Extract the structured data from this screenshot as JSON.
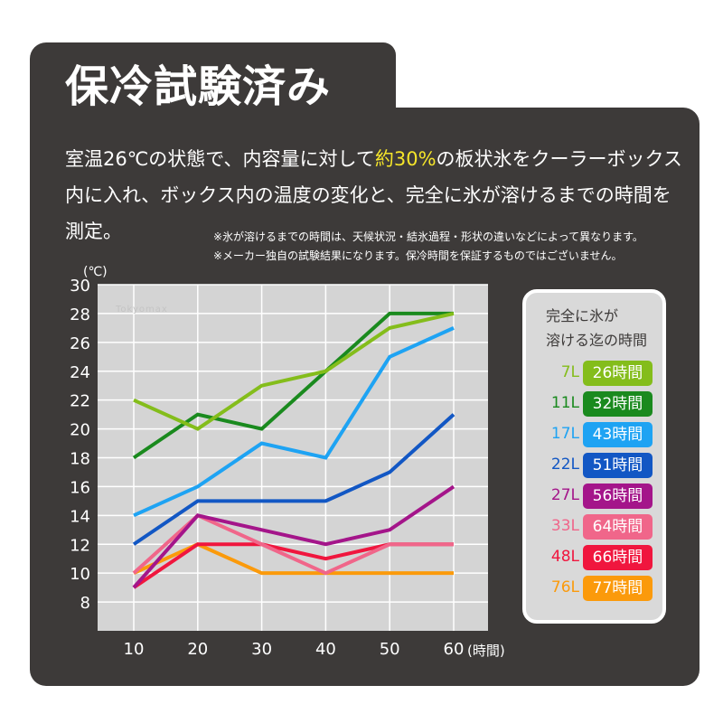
{
  "title": "保冷試験済み",
  "description": {
    "part1": "室温26℃の状態で、内容量に対して",
    "highlight": "約30%",
    "part2": "の板状氷をクーラーボックス内に入れ、ボックス内の温度の変化と、完全に氷が溶けるまでの時間を測定。"
  },
  "notes": [
    "※氷が溶けるまでの時間は、天候状況・結氷過程・形状の違いなどによって異なります。",
    "※メーカー独自の試験結果になります。保冷時間を保証するものではございません。"
  ],
  "watermark": "Tokyomax",
  "legend": {
    "title_line1": "完全に氷が",
    "title_line2": "溶ける迄の時間",
    "items": [
      {
        "volume": "7L",
        "time": "26時間",
        "color": "#84bd1b"
      },
      {
        "volume": "11L",
        "time": "32時間",
        "color": "#1a8a1e"
      },
      {
        "volume": "17L",
        "time": "43時間",
        "color": "#1ea3f3"
      },
      {
        "volume": "22L",
        "time": "51時間",
        "color": "#1257c4"
      },
      {
        "volume": "27L",
        "time": "56時間",
        "color": "#a4158a"
      },
      {
        "volume": "33L",
        "time": "64時間",
        "color": "#f0668a"
      },
      {
        "volume": "48L",
        "time": "66時間",
        "color": "#f0163e"
      },
      {
        "volume": "76L",
        "time": "77時間",
        "color": "#fb9a0b"
      }
    ]
  },
  "chart_data": {
    "type": "line",
    "xunit": "(時間)",
    "yunit": "(℃)",
    "x": [
      10,
      20,
      30,
      40,
      50,
      60
    ],
    "xlim": [
      0,
      60
    ],
    "ylim": [
      6,
      30
    ],
    "yticks": [
      8,
      10,
      12,
      14,
      16,
      18,
      20,
      22,
      24,
      26,
      28,
      30
    ],
    "grid": true,
    "plot_background": "#d4d4d4",
    "series": [
      {
        "name": "7L",
        "color": "#84bd1b",
        "values": [
          22,
          20,
          23,
          24,
          27,
          28
        ]
      },
      {
        "name": "11L",
        "color": "#1a8a1e",
        "values": [
          18,
          21,
          20,
          24,
          28,
          28
        ]
      },
      {
        "name": "17L",
        "color": "#1ea3f3",
        "values": [
          14,
          16,
          19,
          18,
          25,
          27
        ]
      },
      {
        "name": "22L",
        "color": "#1257c4",
        "values": [
          12,
          15,
          15,
          15,
          17,
          21
        ]
      },
      {
        "name": "27L",
        "color": "#a4158a",
        "values": [
          9,
          14,
          13,
          12,
          13,
          16
        ]
      },
      {
        "name": "33L",
        "color": "#f0668a",
        "values": [
          10,
          14,
          12,
          10,
          12,
          12
        ]
      },
      {
        "name": "48L",
        "color": "#f0163e",
        "values": [
          9,
          12,
          12,
          11,
          12,
          12
        ]
      },
      {
        "name": "76L",
        "color": "#fb9a0b",
        "values": [
          10,
          12,
          10,
          10,
          10,
          10
        ]
      }
    ]
  }
}
